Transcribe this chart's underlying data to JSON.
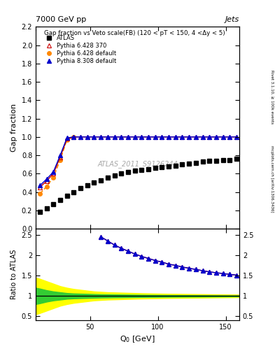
{
  "title_left": "7000 GeV pp",
  "title_right": "Jets",
  "main_title": "Gap fraction vs Veto scale(FB) (120 < pT < 150, 4 <Δy < 5)",
  "xlabel": "Q$_0$ [GeV]",
  "ylabel_main": "Gap fraction",
  "ylabel_ratio": "Ratio to ATLAS",
  "watermark": "ATLAS_2011_S9126244",
  "right_label": "Rivet 3.1.10, ≥ 100k events",
  "right_label2": "mcplots.cern.ch [arXiv:1306.3436]",
  "xlim": [
    10,
    160
  ],
  "ylim_main": [
    0.0,
    2.2
  ],
  "ylim_ratio": [
    0.4,
    2.65
  ],
  "yticks_main": [
    0.0,
    0.2,
    0.4,
    0.6,
    0.8,
    1.0,
    1.2,
    1.4,
    1.6,
    1.8,
    2.0,
    2.2
  ],
  "yticks_ratio": [
    0.5,
    1.0,
    1.5,
    2.0,
    2.5
  ],
  "atlas_x": [
    13,
    18,
    23,
    28,
    33,
    38,
    43,
    48,
    53,
    58,
    63,
    68,
    73,
    78,
    83,
    88,
    93,
    98,
    103,
    108,
    113,
    118,
    123,
    128,
    133,
    138,
    143,
    148,
    153,
    158
  ],
  "atlas_y": [
    0.18,
    0.22,
    0.27,
    0.31,
    0.36,
    0.4,
    0.44,
    0.47,
    0.5,
    0.53,
    0.56,
    0.58,
    0.6,
    0.62,
    0.63,
    0.64,
    0.65,
    0.66,
    0.67,
    0.68,
    0.69,
    0.7,
    0.71,
    0.72,
    0.73,
    0.74,
    0.74,
    0.75,
    0.75,
    0.76
  ],
  "pythia1_x": [
    13,
    18,
    23,
    28,
    33,
    38,
    43,
    48,
    53,
    58,
    63,
    68,
    73,
    78,
    83,
    88,
    93,
    98,
    103,
    108,
    113,
    118,
    123,
    128,
    133,
    138,
    143,
    148,
    153,
    158
  ],
  "pythia1_y": [
    0.45,
    0.52,
    0.6,
    0.78,
    0.98,
    1.0,
    1.0,
    1.0,
    1.0,
    1.0,
    1.0,
    1.0,
    1.0,
    1.0,
    1.0,
    1.0,
    1.0,
    1.0,
    1.0,
    1.0,
    1.0,
    1.0,
    1.0,
    1.0,
    1.0,
    1.0,
    1.0,
    1.0,
    1.0,
    1.0
  ],
  "pythia2_x": [
    13,
    18,
    23,
    28,
    33,
    38
  ],
  "pythia2_y": [
    0.38,
    0.46,
    0.56,
    0.75,
    0.97,
    1.0
  ],
  "pythia3_x": [
    13,
    18,
    23,
    28,
    33,
    38,
    43,
    48,
    53,
    58,
    63,
    68,
    73,
    78,
    83,
    88,
    93,
    98,
    103,
    108,
    113,
    118,
    123,
    128,
    133,
    138,
    143,
    148,
    153,
    158
  ],
  "pythia3_y": [
    0.47,
    0.54,
    0.62,
    0.8,
    0.99,
    1.0,
    1.0,
    1.0,
    1.0,
    1.0,
    1.0,
    1.0,
    1.0,
    1.0,
    1.0,
    1.0,
    1.0,
    1.0,
    1.0,
    1.0,
    1.0,
    1.0,
    1.0,
    1.0,
    1.0,
    1.0,
    1.0,
    1.0,
    1.0,
    1.0
  ],
  "ratio_x": [
    58,
    63,
    68,
    73,
    78,
    83,
    88,
    93,
    98,
    103,
    108,
    113,
    118,
    123,
    128,
    133,
    138,
    143,
    148,
    153,
    158
  ],
  "ratio1_y": [
    2.45,
    2.35,
    2.25,
    2.17,
    2.1,
    2.03,
    1.97,
    1.92,
    1.87,
    1.83,
    1.78,
    1.75,
    1.71,
    1.68,
    1.65,
    1.62,
    1.59,
    1.57,
    1.55,
    1.53,
    1.51
  ],
  "ratio3_y": [
    2.45,
    2.35,
    2.25,
    2.17,
    2.1,
    2.03,
    1.97,
    1.92,
    1.87,
    1.83,
    1.78,
    1.75,
    1.71,
    1.68,
    1.65,
    1.62,
    1.59,
    1.57,
    1.55,
    1.53,
    1.51
  ],
  "atlas_color": "black",
  "pythia1_color": "#cc0000",
  "pythia2_color": "#ff8800",
  "pythia3_color": "#0000cc",
  "band_x": [
    10,
    13,
    18,
    23,
    28,
    33,
    38,
    43,
    48,
    53,
    58,
    63,
    68,
    73,
    78,
    83,
    88,
    93,
    98,
    103,
    108,
    113,
    118,
    123,
    128,
    133,
    138,
    143,
    148,
    153,
    158,
    160
  ],
  "green_hi": [
    1.2,
    1.18,
    1.14,
    1.11,
    1.09,
    1.07,
    1.06,
    1.055,
    1.05,
    1.045,
    1.04,
    1.038,
    1.035,
    1.033,
    1.031,
    1.029,
    1.027,
    1.025,
    1.024,
    1.022,
    1.021,
    1.02,
    1.019,
    1.018,
    1.017,
    1.016,
    1.015,
    1.014,
    1.013,
    1.012,
    1.011,
    1.01
  ],
  "green_lo": [
    0.8,
    0.82,
    0.86,
    0.89,
    0.91,
    0.93,
    0.94,
    0.945,
    0.95,
    0.955,
    0.96,
    0.962,
    0.965,
    0.967,
    0.969,
    0.971,
    0.973,
    0.975,
    0.976,
    0.978,
    0.979,
    0.98,
    0.981,
    0.982,
    0.983,
    0.984,
    0.985,
    0.986,
    0.987,
    0.988,
    0.989,
    0.99
  ],
  "yellow_hi": [
    1.45,
    1.42,
    1.36,
    1.3,
    1.24,
    1.2,
    1.17,
    1.15,
    1.13,
    1.11,
    1.1,
    1.09,
    1.085,
    1.08,
    1.075,
    1.07,
    1.065,
    1.062,
    1.058,
    1.055,
    1.052,
    1.05,
    1.048,
    1.046,
    1.044,
    1.042,
    1.04,
    1.038,
    1.036,
    1.034,
    1.032,
    1.03
  ],
  "yellow_lo": [
    0.55,
    0.58,
    0.64,
    0.7,
    0.76,
    0.8,
    0.83,
    0.85,
    0.87,
    0.89,
    0.9,
    0.91,
    0.915,
    0.92,
    0.925,
    0.93,
    0.935,
    0.938,
    0.942,
    0.945,
    0.948,
    0.95,
    0.952,
    0.954,
    0.956,
    0.958,
    0.96,
    0.962,
    0.964,
    0.966,
    0.968,
    0.97
  ]
}
